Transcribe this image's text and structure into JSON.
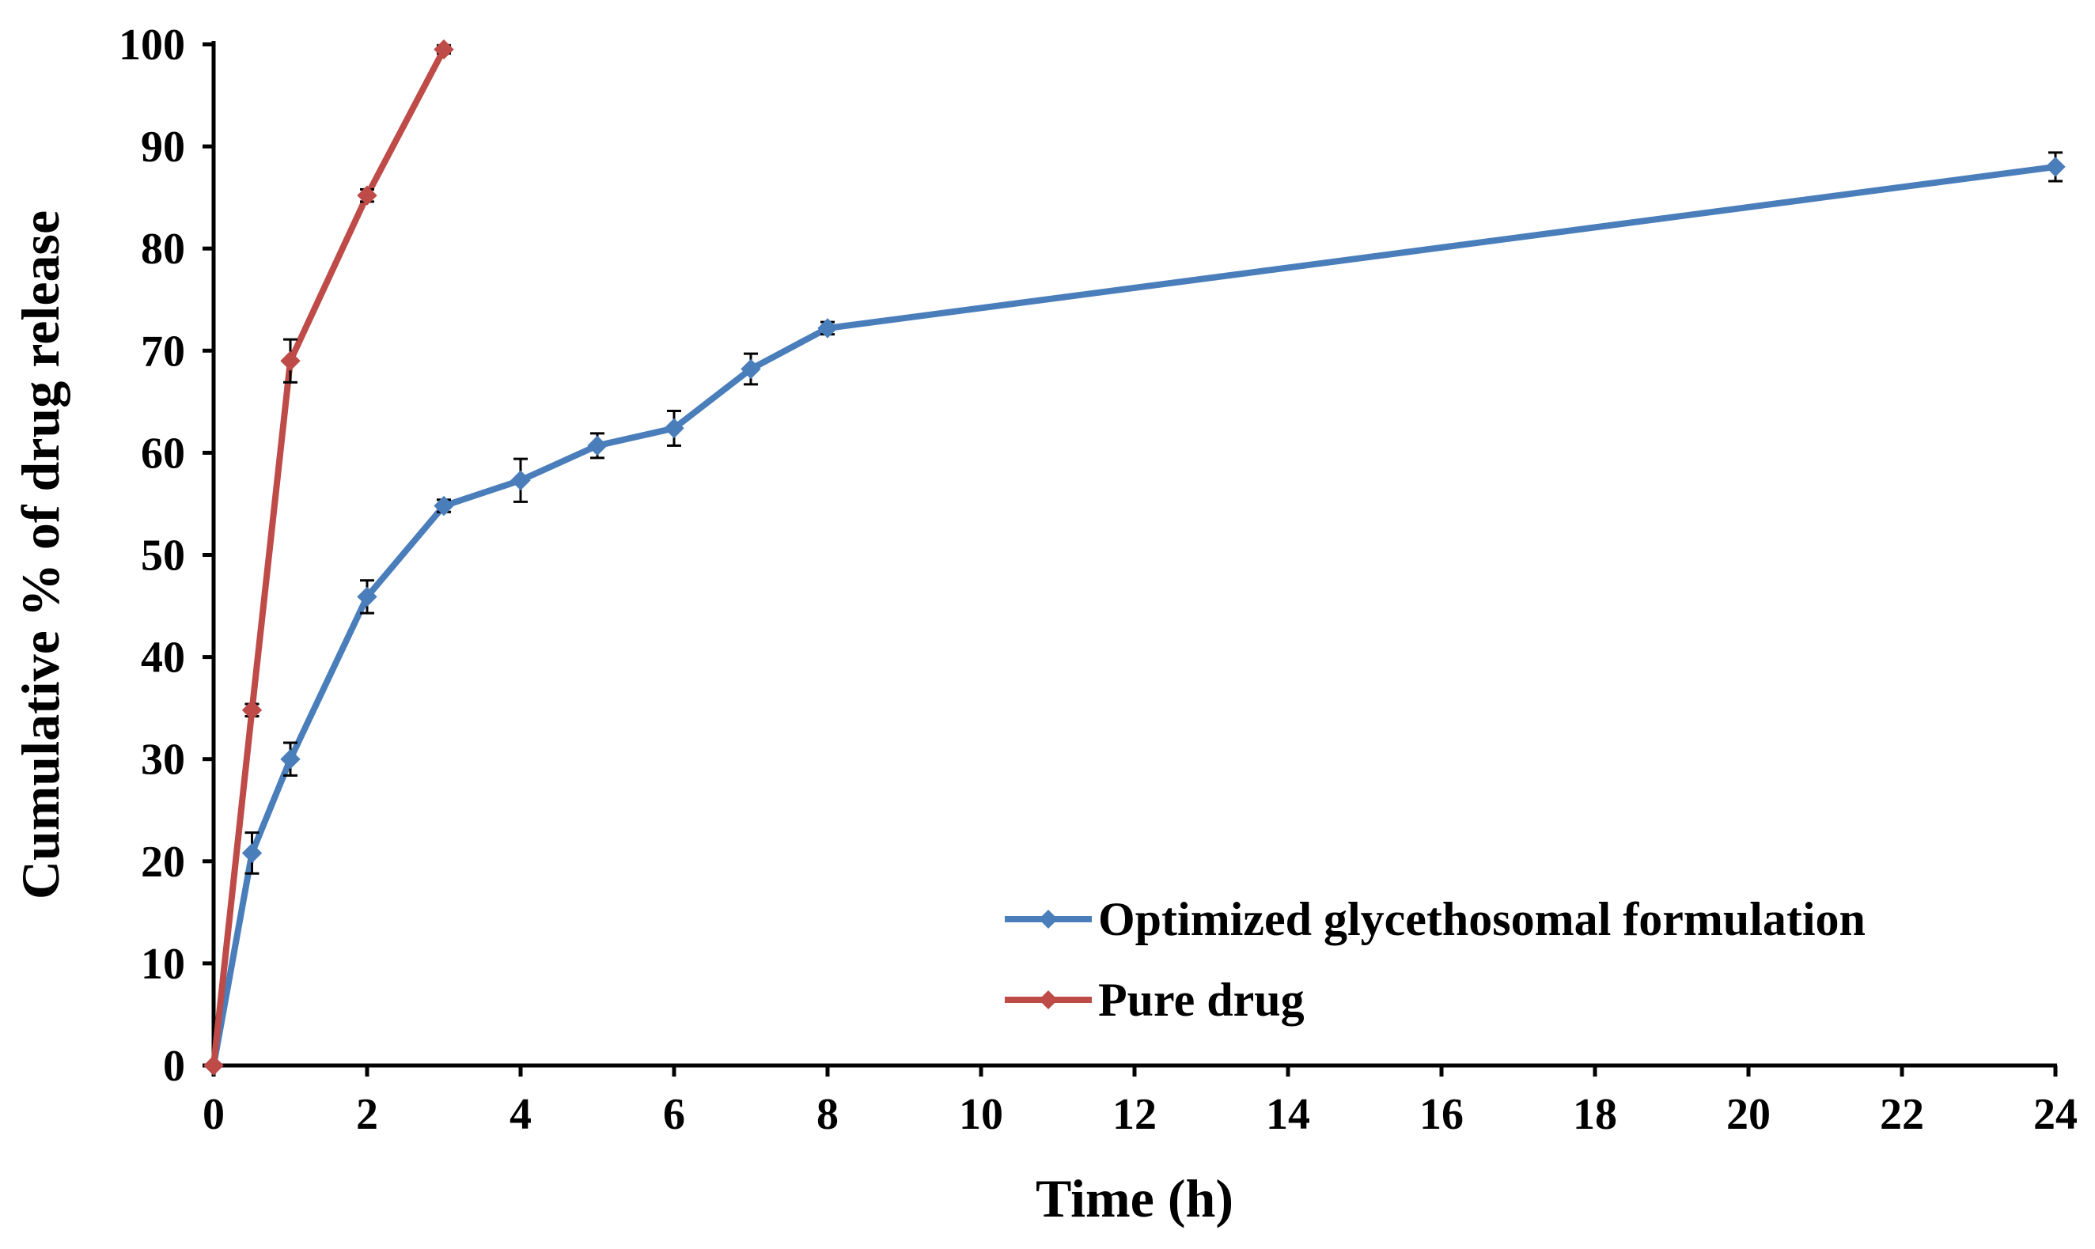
{
  "chart_data": {
    "type": "line",
    "title": "",
    "xlabel": "Time (h)",
    "ylabel": "Cumulative % of drug release",
    "xlim": [
      0,
      24
    ],
    "ylim": [
      0,
      100
    ],
    "x_ticks": [
      0,
      2,
      4,
      6,
      8,
      10,
      12,
      14,
      16,
      18,
      20,
      22,
      24
    ],
    "y_ticks": [
      0,
      10,
      20,
      30,
      40,
      50,
      60,
      70,
      80,
      90,
      100
    ],
    "grid": false,
    "legend_position": "bottom-right",
    "series": [
      {
        "name": "Optimized glycethosomal formulation",
        "color": "#4a7ebb",
        "marker": "diamond",
        "x": [
          0,
          0.5,
          1,
          2,
          3,
          4,
          5,
          6,
          7,
          8,
          24
        ],
        "y": [
          0,
          20.8,
          30.0,
          45.9,
          54.8,
          57.3,
          60.7,
          62.4,
          68.2,
          72.2,
          88.0
        ],
        "error": [
          0,
          2.0,
          1.6,
          1.6,
          0.6,
          2.1,
          1.2,
          1.7,
          1.5,
          0.6,
          1.4
        ]
      },
      {
        "name": "Pure drug",
        "color": "#be4b48",
        "marker": "diamond",
        "x": [
          0,
          0.5,
          1,
          2,
          3
        ],
        "y": [
          0,
          34.8,
          69.0,
          85.2,
          99.5
        ],
        "error": [
          0,
          0.6,
          2.1,
          0.6,
          0.4
        ]
      }
    ]
  }
}
